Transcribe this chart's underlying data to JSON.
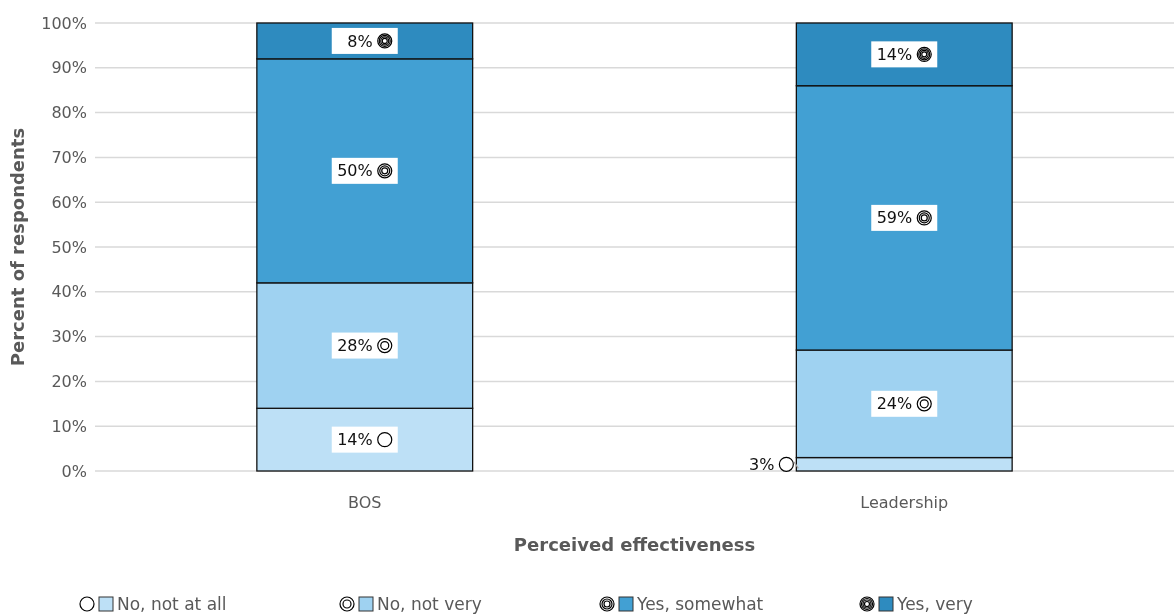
{
  "chart_data": {
    "type": "bar",
    "stacked": true,
    "xlabel": "Perceived effectiveness",
    "ylabel": "Percent of respondents",
    "categories": [
      "BOS",
      "Leadership"
    ],
    "series": [
      {
        "name": "No, not at all",
        "color": "#bde0f6",
        "values": [
          14,
          3
        ],
        "value_labels": [
          "14%",
          "3%"
        ]
      },
      {
        "name": "No, not very",
        "color": "#9fd2f1",
        "values": [
          28,
          24
        ],
        "value_labels": [
          "28%",
          "24%"
        ]
      },
      {
        "name": "Yes, somewhat",
        "color": "#42a0d3",
        "values": [
          50,
          59
        ],
        "value_labels": [
          "50%",
          "59%"
        ]
      },
      {
        "name": "Yes, very",
        "color": "#2e8bbf",
        "values": [
          8,
          14
        ],
        "value_labels": [
          "8%",
          "14%"
        ]
      }
    ],
    "ylim": [
      0,
      100
    ],
    "yticks": [
      {
        "value": 0,
        "label": "0%"
      },
      {
        "value": 10,
        "label": "10%"
      },
      {
        "value": 20,
        "label": "20%"
      },
      {
        "value": 30,
        "label": "30%"
      },
      {
        "value": 40,
        "label": "40%"
      },
      {
        "value": 50,
        "label": "50%"
      },
      {
        "value": 60,
        "label": "60%"
      },
      {
        "value": 70,
        "label": "70%"
      },
      {
        "value": 80,
        "label": "80%"
      },
      {
        "value": 90,
        "label": "90%"
      },
      {
        "value": 100,
        "label": "100%"
      }
    ],
    "grid": "y",
    "legend": "bottom"
  }
}
